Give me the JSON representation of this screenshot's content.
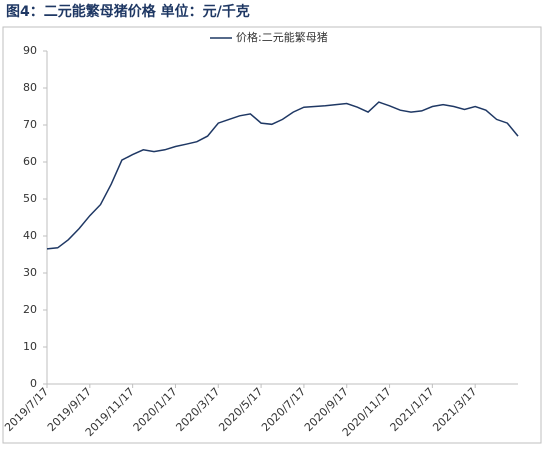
{
  "chart_data": {
    "type": "line",
    "title": "图4：二元能繁母猪价格 单位：元/千克",
    "categories": [
      "2019/7/17",
      null,
      null,
      null,
      "2019/9/17",
      null,
      null,
      null,
      "2019/11/17",
      null,
      null,
      null,
      "2020/1/17",
      null,
      null,
      null,
      "2020/3/17",
      null,
      null,
      null,
      "2020/5/17",
      null,
      null,
      null,
      "2020/7/17",
      null,
      null,
      null,
      "2020/9/17",
      null,
      null,
      null,
      "2020/11/17",
      null,
      null,
      null,
      "2021/1/17",
      null,
      null,
      null,
      "2021/3/17",
      null,
      null,
      null,
      null
    ],
    "series": [
      {
        "name": "价格:二元能繁母猪",
        "color": "#1f3864",
        "values": [
          36.5,
          36.8,
          39,
          42,
          45.5,
          48.5,
          54,
          60.5,
          62,
          63.3,
          62.8,
          63.3,
          64.2,
          64.8,
          65.5,
          67,
          70.5,
          71.5,
          72.5,
          73,
          70.5,
          70.2,
          71.5,
          73.5,
          74.8,
          75,
          75.2,
          75.5,
          75.8,
          74.8,
          73.5,
          76.2,
          75.2,
          74,
          73.5,
          73.8,
          75,
          75.5,
          75,
          74.2,
          75,
          74,
          71.5,
          70.5,
          67
        ]
      }
    ],
    "ylim": [
      0,
      90
    ],
    "yticks": [
      0,
      10,
      20,
      30,
      40,
      50,
      60,
      70,
      80,
      90
    ],
    "grid": false,
    "legend": "top"
  }
}
